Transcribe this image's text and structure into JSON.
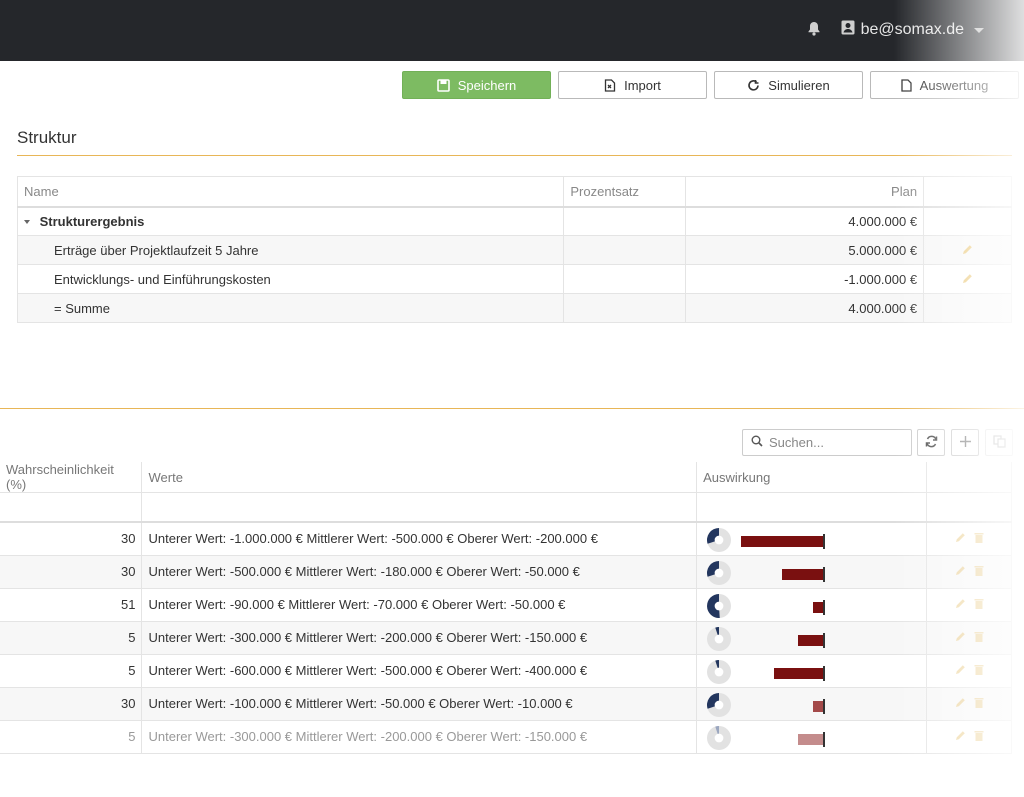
{
  "header": {
    "user_email": "be@somax.de"
  },
  "toolbar": {
    "save_label": "Speichern",
    "import_label": "Import",
    "simulate_label": "Simulieren",
    "evaluation_label": "Auswertung"
  },
  "struktur": {
    "title": "Struktur",
    "columns": {
      "name": "Name",
      "percent": "Prozentsatz",
      "plan": "Plan"
    },
    "rows": [
      {
        "name": "Strukturergebnis",
        "percent": "",
        "plan": "4.000.000 €"
      },
      {
        "name": "Erträge über Projektlaufzeit 5 Jahre",
        "percent": "",
        "plan": "5.000.000 €"
      },
      {
        "name": "Entwicklungs- und Einführungskosten",
        "percent": "",
        "plan": "-1.000.000 €"
      },
      {
        "name": "= Summe",
        "percent": "",
        "plan": "4.000.000 €"
      }
    ]
  },
  "risks": {
    "search_placeholder": "Suchen...",
    "columns": {
      "probability": "Wahrscheinlichkeit (%)",
      "values": "Werte",
      "impact": "Auswirkung"
    },
    "rows": [
      {
        "probability": "30",
        "values": "Unterer Wert: -1.000.000 € Mittlerer Wert: -500.000 € Oberer Wert: -200.000 €",
        "pie": 0.3,
        "impact": 1.0
      },
      {
        "probability": "30",
        "values": "Unterer Wert: -500.000 € Mittlerer Wert: -180.000 € Oberer Wert: -50.000 €",
        "pie": 0.3,
        "impact": 0.5
      },
      {
        "probability": "51",
        "values": "Unterer Wert: -90.000 € Mittlerer Wert: -70.000 € Oberer Wert: -50.000 €",
        "pie": 0.51,
        "impact": 0.12
      },
      {
        "probability": "5",
        "values": "Unterer Wert: -300.000 € Mittlerer Wert: -200.000 € Oberer Wert: -150.000 €",
        "pie": 0.05,
        "impact": 0.31
      },
      {
        "probability": "5",
        "values": "Unterer Wert: -600.000 € Mittlerer Wert: -500.000 € Oberer Wert: -400.000 €",
        "pie": 0.05,
        "impact": 0.6
      },
      {
        "probability": "30",
        "values": "Unterer Wert: -100.000 € Mittlerer Wert: -50.000 € Oberer Wert: -10.000 €",
        "pie": 0.3,
        "impact": 0.12
      },
      {
        "probability": "5",
        "values": "Unterer Wert: -300.000 € Mittlerer Wert: -200.000 € Oberer Wert: -150.000 €",
        "pie": 0.05,
        "impact": 0.31
      }
    ]
  },
  "colors": {
    "primary": "#7dbb62",
    "accent_rule": "#e8b657",
    "bar": "#7a1010",
    "pie": "#23365e",
    "edit_icon": "#e0b24a"
  }
}
